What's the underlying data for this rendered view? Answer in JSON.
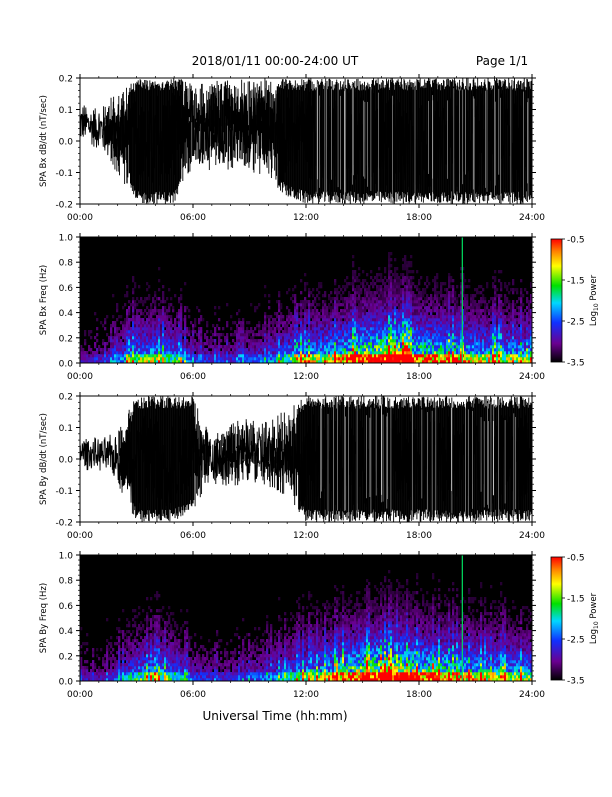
{
  "header": {
    "title": "2018/01/11  00:00-24:00 UT",
    "page": "Page 1/1"
  },
  "xlabel": "Universal Time (hh:mm)",
  "colors": {
    "background": "#ffffff",
    "axis": "#000000",
    "trace": "#000000",
    "spectrogram_bg": "#000000"
  },
  "colorbar": {
    "label": "Log10 Power",
    "label_main": "Log",
    "label_sub": "10",
    "label_tail": " Power",
    "ticks": [
      "-0.5",
      "-1.5",
      "-2.5",
      "-3.5"
    ],
    "range": [
      -3.5,
      -0.5
    ]
  },
  "chart_data": [
    {
      "type": "line",
      "ylabel": "SPA Bx dB/dt (nT/sec)",
      "ylim": [
        -0.2,
        0.2
      ],
      "yticks": [
        "0.2",
        "0.1",
        "0.0",
        "-0.1",
        "-0.2"
      ],
      "xticks": [
        "00:00",
        "06:00",
        "12:00",
        "18:00",
        "24:00"
      ],
      "xlim_hours": [
        0,
        24
      ],
      "series": [
        {
          "x_hours": [
            0,
            1,
            2,
            3,
            4,
            5,
            6,
            7,
            8,
            9,
            10,
            11,
            12,
            13,
            14,
            15,
            16,
            17,
            18,
            19,
            20,
            21,
            22,
            23,
            24
          ],
          "envelope_max": [
            0.13,
            0.12,
            0.15,
            0.2,
            0.2,
            0.2,
            0.19,
            0.2,
            0.2,
            0.2,
            0.2,
            0.2,
            0.2,
            0.2,
            0.2,
            0.2,
            0.2,
            0.2,
            0.2,
            0.2,
            0.2,
            0.2,
            0.2,
            0.2,
            0.2
          ],
          "envelope_min": [
            -0.01,
            -0.04,
            -0.1,
            -0.2,
            -0.2,
            -0.2,
            -0.08,
            -0.1,
            -0.09,
            -0.1,
            -0.12,
            -0.18,
            -0.2,
            -0.2,
            -0.2,
            -0.2,
            -0.2,
            -0.2,
            -0.2,
            -0.2,
            -0.2,
            -0.2,
            -0.2,
            -0.2,
            -0.2
          ]
        }
      ]
    },
    {
      "type": "heatmap",
      "ylabel": "SPA Bx Freq (Hz)",
      "ylim": [
        0.0,
        1.0
      ],
      "yticks": [
        "1.0",
        "0.8",
        "0.6",
        "0.4",
        "0.2",
        "0.0"
      ],
      "xticks": [
        "00:00",
        "06:00",
        "12:00",
        "18:00",
        "24:00"
      ],
      "xlim_hours": [
        0,
        24
      ],
      "activity_hours": [
        0,
        1,
        2,
        3,
        4,
        5,
        6,
        7,
        8,
        9,
        10,
        11,
        12,
        13,
        14,
        15,
        16,
        17,
        18,
        19,
        20,
        21,
        22,
        23,
        24
      ],
      "activity_level": [
        0.15,
        0.15,
        0.25,
        0.55,
        0.55,
        0.45,
        0.25,
        0.2,
        0.2,
        0.25,
        0.3,
        0.45,
        0.55,
        0.6,
        0.7,
        0.85,
        0.95,
        0.95,
        0.8,
        0.75,
        0.7,
        0.6,
        0.6,
        0.55,
        0.5
      ],
      "line_hours": [
        20.3
      ]
    },
    {
      "type": "line",
      "ylabel": "SPA By dB/dt (nT/sec)",
      "ylim": [
        -0.2,
        0.2
      ],
      "yticks": [
        "0.2",
        "0.1",
        "0.0",
        "-0.1",
        "-0.2"
      ],
      "xticks": [
        "00:00",
        "06:00",
        "12:00",
        "18:00",
        "24:00"
      ],
      "xlim_hours": [
        0,
        24
      ],
      "series": [
        {
          "x_hours": [
            0,
            1,
            2,
            3,
            4,
            5,
            6,
            7,
            8,
            9,
            10,
            11,
            12,
            13,
            14,
            15,
            16,
            17,
            18,
            19,
            20,
            21,
            22,
            23,
            24
          ],
          "envelope_max": [
            0.08,
            0.07,
            0.09,
            0.2,
            0.2,
            0.2,
            0.2,
            0.09,
            0.12,
            0.13,
            0.12,
            0.16,
            0.2,
            0.2,
            0.2,
            0.2,
            0.2,
            0.2,
            0.2,
            0.2,
            0.2,
            0.2,
            0.2,
            0.2,
            0.2
          ],
          "envelope_min": [
            -0.04,
            -0.04,
            -0.08,
            -0.2,
            -0.2,
            -0.2,
            -0.16,
            -0.08,
            -0.1,
            -0.08,
            -0.09,
            -0.12,
            -0.2,
            -0.2,
            -0.2,
            -0.2,
            -0.2,
            -0.2,
            -0.2,
            -0.2,
            -0.2,
            -0.2,
            -0.2,
            -0.2,
            -0.2
          ]
        }
      ]
    },
    {
      "type": "heatmap",
      "ylabel": "SPA By Freq (Hz)",
      "ylim": [
        0.0,
        1.0
      ],
      "yticks": [
        "1.0",
        "0.8",
        "0.6",
        "0.4",
        "0.2",
        "0.0"
      ],
      "xticks": [
        "00:00",
        "06:00",
        "12:00",
        "18:00",
        "24:00"
      ],
      "xlim_hours": [
        0,
        24
      ],
      "activity_hours": [
        0,
        1,
        2,
        3,
        4,
        5,
        6,
        7,
        8,
        9,
        10,
        11,
        12,
        13,
        14,
        15,
        16,
        17,
        18,
        19,
        20,
        21,
        22,
        23,
        24
      ],
      "activity_level": [
        0.15,
        0.15,
        0.25,
        0.45,
        0.5,
        0.45,
        0.25,
        0.2,
        0.2,
        0.25,
        0.3,
        0.4,
        0.5,
        0.6,
        0.75,
        0.9,
        0.95,
        1.0,
        0.85,
        0.75,
        0.7,
        0.6,
        0.6,
        0.55,
        0.5
      ],
      "line_hours": [
        20.3
      ]
    }
  ]
}
